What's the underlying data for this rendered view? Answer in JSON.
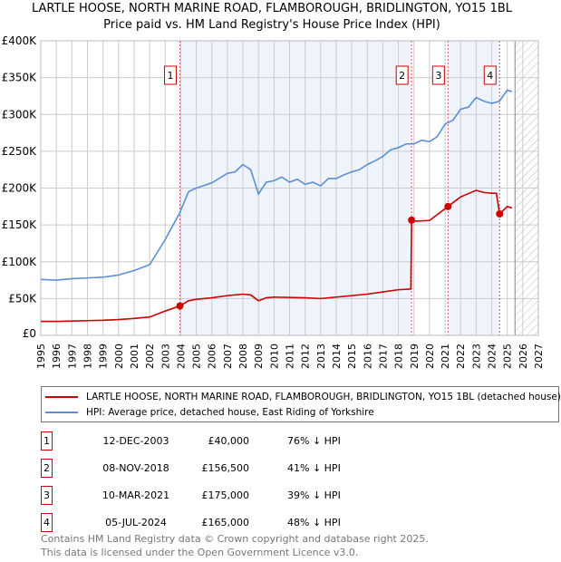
{
  "chart_data": {
    "type": "line",
    "title": "LARTLE HOOSE, NORTH MARINE ROAD, FLAMBOROUGH, BRIDLINGTON, YO15 1BL",
    "subtitle": "Price paid vs. HM Land Registry's House Price Index (HPI)",
    "xlim": [
      1995,
      2027
    ],
    "ylim": [
      0,
      400000
    ],
    "x_ticks": [
      "1995",
      "1996",
      "1997",
      "1998",
      "1999",
      "2000",
      "2001",
      "2002",
      "2003",
      "2004",
      "2005",
      "2006",
      "2007",
      "2008",
      "2009",
      "2010",
      "2011",
      "2012",
      "2013",
      "2014",
      "2015",
      "2016",
      "2017",
      "2018",
      "2019",
      "2020",
      "2021",
      "2022",
      "2023",
      "2024",
      "2025",
      "2026",
      "2027"
    ],
    "y_ticks": [
      {
        "v": 0,
        "label": "£0"
      },
      {
        "v": 50000,
        "label": "£50K"
      },
      {
        "v": 100000,
        "label": "£100K"
      },
      {
        "v": 150000,
        "label": "£150K"
      },
      {
        "v": 200000,
        "label": "£200K"
      },
      {
        "v": 250000,
        "label": "£250K"
      },
      {
        "v": 300000,
        "label": "£300K"
      },
      {
        "v": 350000,
        "label": "£350K"
      },
      {
        "v": 400000,
        "label": "£400K"
      }
    ],
    "grid": true,
    "forecast_from": 2025.5,
    "shaded_ranges": [
      [
        2003.95,
        2018.85
      ],
      [
        2021.19,
        2024.51
      ]
    ],
    "series": [
      {
        "name": "LARTLE HOOSE, NORTH MARINE ROAD, FLAMBOROUGH, BRIDLINGTON, YO15 1BL (detached house)",
        "color": "#cc0000",
        "x": [
          1995,
          1996,
          1997,
          1998,
          1999,
          2000,
          2001,
          2002,
          2003,
          2003.95,
          2004.5,
          2005,
          2006,
          2007,
          2008,
          2008.5,
          2009,
          2009.5,
          2010,
          2012,
          2013,
          2014,
          2015,
          2016,
          2017,
          2018,
          2018.8,
          2018.85,
          2019,
          2020,
          2021.19,
          2022,
          2023,
          2023.5,
          2024,
          2024.3,
          2024.51,
          2025,
          2025.3
        ],
        "y": [
          19000,
          19000,
          19500,
          20000,
          20500,
          21500,
          23000,
          25000,
          33000,
          40000,
          47000,
          49000,
          51000,
          54000,
          56000,
          55000,
          47000,
          51000,
          52000,
          51000,
          50000,
          52000,
          54000,
          56000,
          59000,
          62000,
          63000,
          156500,
          155000,
          156000,
          175000,
          188000,
          197000,
          194000,
          193000,
          193000,
          165000,
          175000,
          173000
        ]
      },
      {
        "name": "HPI: Average price, detached house, East Riding of Yorkshire",
        "color": "#5b8fd4",
        "x": [
          1995,
          1996,
          1997,
          1998,
          1999,
          2000,
          2001,
          2002,
          2003,
          2003.95,
          2004.5,
          2005,
          2006,
          2007,
          2007.5,
          2008,
          2008.5,
          2009,
          2009.5,
          2010,
          2010.5,
          2011,
          2011.5,
          2012,
          2012.5,
          2013,
          2013.5,
          2014,
          2014.5,
          2015,
          2015.5,
          2016,
          2016.5,
          2017,
          2017.5,
          2018,
          2018.5,
          2019,
          2019.5,
          2020,
          2020.5,
          2021,
          2021.5,
          2022,
          2022.5,
          2023,
          2023.5,
          2024,
          2024.5,
          2025,
          2025.3
        ],
        "y": [
          76000,
          75000,
          77000,
          78000,
          79000,
          82000,
          88000,
          96000,
          130000,
          167000,
          195000,
          200000,
          207000,
          220000,
          222000,
          232000,
          225000,
          192000,
          208000,
          210000,
          215000,
          208000,
          212000,
          205000,
          208000,
          203000,
          213000,
          213000,
          218000,
          222000,
          225000,
          232000,
          237000,
          243000,
          252000,
          255000,
          260000,
          260000,
          265000,
          263000,
          270000,
          287000,
          292000,
          307000,
          310000,
          323000,
          318000,
          315000,
          318000,
          333000,
          331000
        ]
      }
    ],
    "sales": [
      {
        "n": "1",
        "date": "12-DEC-2003",
        "price": "£40,000",
        "hpi": "76% ↓ HPI",
        "x": 2003.95,
        "y": 40000
      },
      {
        "n": "2",
        "date": "08-NOV-2018",
        "price": "£156,500",
        "hpi": "41% ↓ HPI",
        "x": 2018.85,
        "y": 156500
      },
      {
        "n": "3",
        "date": "10-MAR-2021",
        "price": "£175,000",
        "hpi": "39% ↓ HPI",
        "x": 2021.19,
        "y": 175000
      },
      {
        "n": "4",
        "date": "05-JUL-2024",
        "price": "£165,000",
        "hpi": "48% ↓ HPI",
        "x": 2024.51,
        "y": 165000
      }
    ]
  },
  "legend": {
    "red_label": "LARTLE HOOSE, NORTH MARINE ROAD, FLAMBOROUGH, BRIDLINGTON, YO15 1BL (detached house)",
    "blue_label": "HPI: Average price, detached house, East Riding of Yorkshire"
  },
  "footer": {
    "line1": "Contains HM Land Registry data © Crown copyright and database right 2025.",
    "line2": "This data is licensed under the Open Government Licence v3.0."
  }
}
